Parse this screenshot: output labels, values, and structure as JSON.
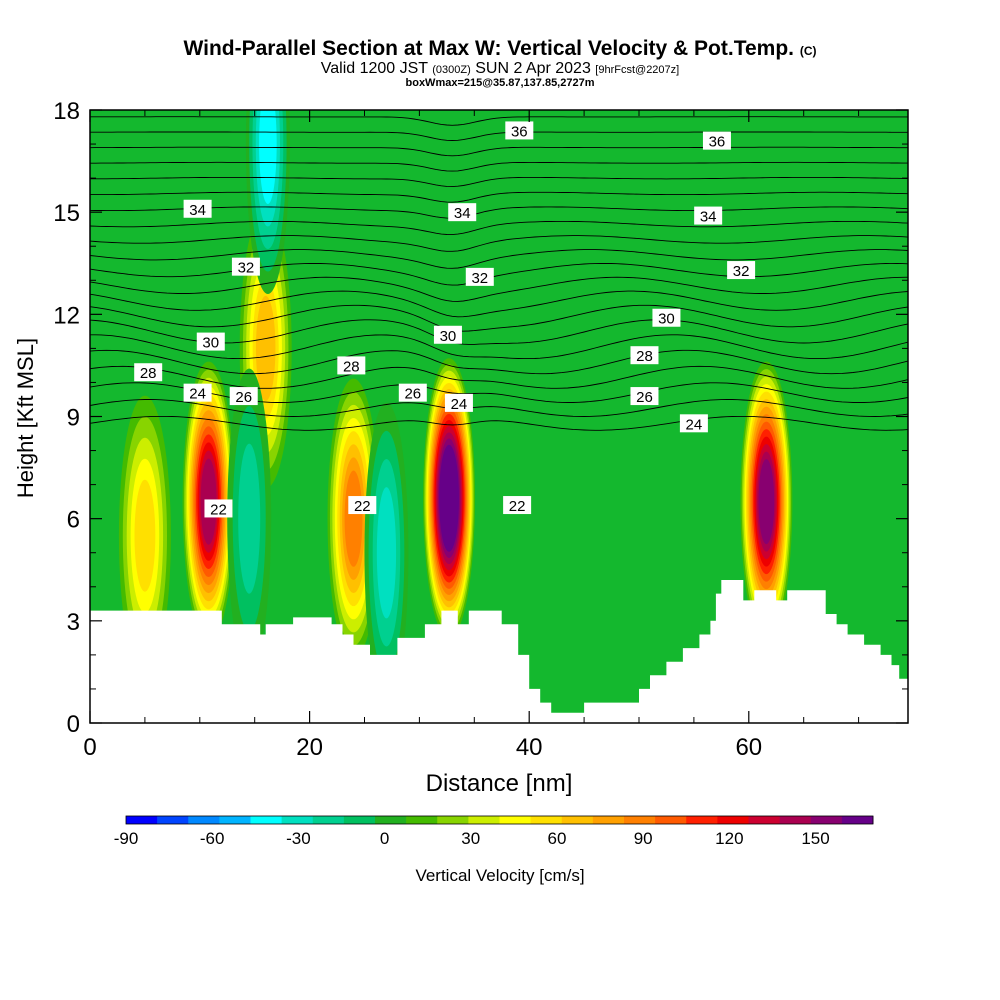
{
  "header": {
    "title_main": "Wind-Parallel Section at Max W: Vertical Velocity & Pot.Temp.",
    "copyright_mark": "(C)",
    "valid_prefix": "Valid 1200 JST",
    "valid_utc": "(0300Z)",
    "valid_date": "SUN 2 Apr 2023",
    "forecast_info": "[9hrFcst@2207z]",
    "box_info": "boxWmax=215@35.87,137.85,2727m"
  },
  "chart_data": {
    "type": "heatmap",
    "xlabel": "Distance [nm]",
    "ylabel": "Height [Kft MSL]",
    "xlim": [
      0,
      74.5
    ],
    "ylim": [
      0,
      18
    ],
    "x_ticks": [
      0,
      20,
      40,
      60
    ],
    "y_ticks": [
      0,
      3,
      6,
      9,
      12,
      15,
      18
    ],
    "colorbar": {
      "label": "Vertical Velocity [cm/s]",
      "min": -90,
      "max": 170,
      "step": 10,
      "tick_values": [
        -90,
        -60,
        -30,
        0,
        30,
        60,
        90,
        120,
        150
      ],
      "colors": [
        "#0000ff",
        "#0044ff",
        "#0088ff",
        "#00b4ff",
        "#00ffff",
        "#00e0c0",
        "#00d090",
        "#00c060",
        "#22b020",
        "#44bb00",
        "#88d400",
        "#ccee00",
        "#ffff00",
        "#ffe000",
        "#ffc000",
        "#ffa000",
        "#ff8000",
        "#ff5a00",
        "#ff2000",
        "#ee0000",
        "#cc0030",
        "#aa0050",
        "#880070",
        "#660088"
      ]
    },
    "theta_contour_labels": [
      {
        "x": 39.1,
        "y": 17.4,
        "text": "36"
      },
      {
        "x": 57.1,
        "y": 17.1,
        "text": "36"
      },
      {
        "x": 9.8,
        "y": 15.1,
        "text": "34"
      },
      {
        "x": 33.9,
        "y": 15.0,
        "text": "34"
      },
      {
        "x": 56.3,
        "y": 14.9,
        "text": "34"
      },
      {
        "x": 14.2,
        "y": 13.4,
        "text": "32"
      },
      {
        "x": 35.5,
        "y": 13.1,
        "text": "32"
      },
      {
        "x": 59.3,
        "y": 13.3,
        "text": "32"
      },
      {
        "x": 11.0,
        "y": 11.2,
        "text": "30"
      },
      {
        "x": 32.6,
        "y": 11.4,
        "text": "30"
      },
      {
        "x": 52.5,
        "y": 11.9,
        "text": "30"
      },
      {
        "x": 5.3,
        "y": 10.3,
        "text": "28"
      },
      {
        "x": 23.8,
        "y": 10.5,
        "text": "28"
      },
      {
        "x": 50.5,
        "y": 10.8,
        "text": "28"
      },
      {
        "x": 9.8,
        "y": 9.7,
        "text": "24"
      },
      {
        "x": 14.0,
        "y": 9.6,
        "text": "26"
      },
      {
        "x": 29.4,
        "y": 9.7,
        "text": "26"
      },
      {
        "x": 33.6,
        "y": 9.4,
        "text": "24"
      },
      {
        "x": 50.5,
        "y": 9.6,
        "text": "26"
      },
      {
        "x": 55.0,
        "y": 8.8,
        "text": "24"
      },
      {
        "x": 11.7,
        "y": 6.3,
        "text": "22"
      },
      {
        "x": 24.8,
        "y": 6.4,
        "text": "22"
      },
      {
        "x": 38.9,
        "y": 6.4,
        "text": "22"
      }
    ],
    "updraft_cores": [
      {
        "x": 10.8,
        "y": 6.5,
        "w_cm_s": 125
      },
      {
        "x": 32.7,
        "y": 6.6,
        "w_cm_s": 165
      },
      {
        "x": 61.6,
        "y": 6.5,
        "w_cm_s": 135
      },
      {
        "x": 24.0,
        "y": 6.0,
        "w_cm_s": 75
      },
      {
        "x": 16.0,
        "y": 11.0,
        "w_cm_s": 55
      },
      {
        "x": 5.0,
        "y": 5.5,
        "w_cm_s": 50
      }
    ],
    "downdraft_cores": [
      {
        "x": 16.2,
        "y": 17.0,
        "w_cm_s": -50
      },
      {
        "x": 27.0,
        "y": 5.0,
        "w_cm_s": -38
      },
      {
        "x": 14.5,
        "y": 6.0,
        "w_cm_s": -33
      }
    ],
    "terrain_height": [
      [
        0,
        3.3
      ],
      [
        12,
        3.3
      ],
      [
        12,
        2.9
      ],
      [
        15.5,
        2.9
      ],
      [
        15.5,
        2.6
      ],
      [
        16,
        2.6
      ],
      [
        16,
        2.9
      ],
      [
        18.5,
        2.9
      ],
      [
        18.5,
        3.1
      ],
      [
        22,
        3.1
      ],
      [
        22,
        2.9
      ],
      [
        23,
        2.9
      ],
      [
        23,
        2.6
      ],
      [
        24,
        2.6
      ],
      [
        24,
        2.3
      ],
      [
        25.5,
        2.3
      ],
      [
        25.5,
        2.0
      ],
      [
        28,
        2.0
      ],
      [
        28,
        2.5
      ],
      [
        30.5,
        2.5
      ],
      [
        30.5,
        2.9
      ],
      [
        32,
        2.9
      ],
      [
        32,
        3.3
      ],
      [
        33.5,
        3.3
      ],
      [
        33.5,
        2.9
      ],
      [
        34.5,
        2.9
      ],
      [
        34.5,
        3.3
      ],
      [
        37.5,
        3.3
      ],
      [
        37.5,
        2.9
      ],
      [
        39,
        2.9
      ],
      [
        39,
        2.0
      ],
      [
        40,
        2.0
      ],
      [
        40,
        1.0
      ],
      [
        41,
        1.0
      ],
      [
        41,
        0.6
      ],
      [
        42,
        0.6
      ],
      [
        42,
        0.3
      ],
      [
        45,
        0.3
      ],
      [
        45,
        0.6
      ],
      [
        50,
        0.6
      ],
      [
        50,
        1.0
      ],
      [
        51,
        1.0
      ],
      [
        51,
        1.4
      ],
      [
        52.5,
        1.4
      ],
      [
        52.5,
        1.8
      ],
      [
        54,
        1.8
      ],
      [
        54,
        2.2
      ],
      [
        55.5,
        2.2
      ],
      [
        55.5,
        2.6
      ],
      [
        56.5,
        2.6
      ],
      [
        56.5,
        3.0
      ],
      [
        57,
        3.0
      ],
      [
        57,
        3.8
      ],
      [
        57.5,
        3.8
      ],
      [
        57.5,
        4.2
      ],
      [
        59.5,
        4.2
      ],
      [
        59.5,
        3.6
      ],
      [
        60.5,
        3.6
      ],
      [
        60.5,
        3.9
      ],
      [
        62.5,
        3.9
      ],
      [
        62.5,
        3.6
      ],
      [
        63.5,
        3.6
      ],
      [
        63.5,
        3.9
      ],
      [
        67,
        3.9
      ],
      [
        67,
        3.2
      ],
      [
        68,
        3.2
      ],
      [
        68,
        2.9
      ],
      [
        69,
        2.9
      ],
      [
        69,
        2.6
      ],
      [
        70.5,
        2.6
      ],
      [
        70.5,
        2.3
      ],
      [
        72,
        2.3
      ],
      [
        72,
        2.0
      ],
      [
        73,
        2.0
      ],
      [
        73,
        1.7
      ],
      [
        73.7,
        1.7
      ],
      [
        73.7,
        1.3
      ],
      [
        74.5,
        1.3
      ]
    ]
  }
}
